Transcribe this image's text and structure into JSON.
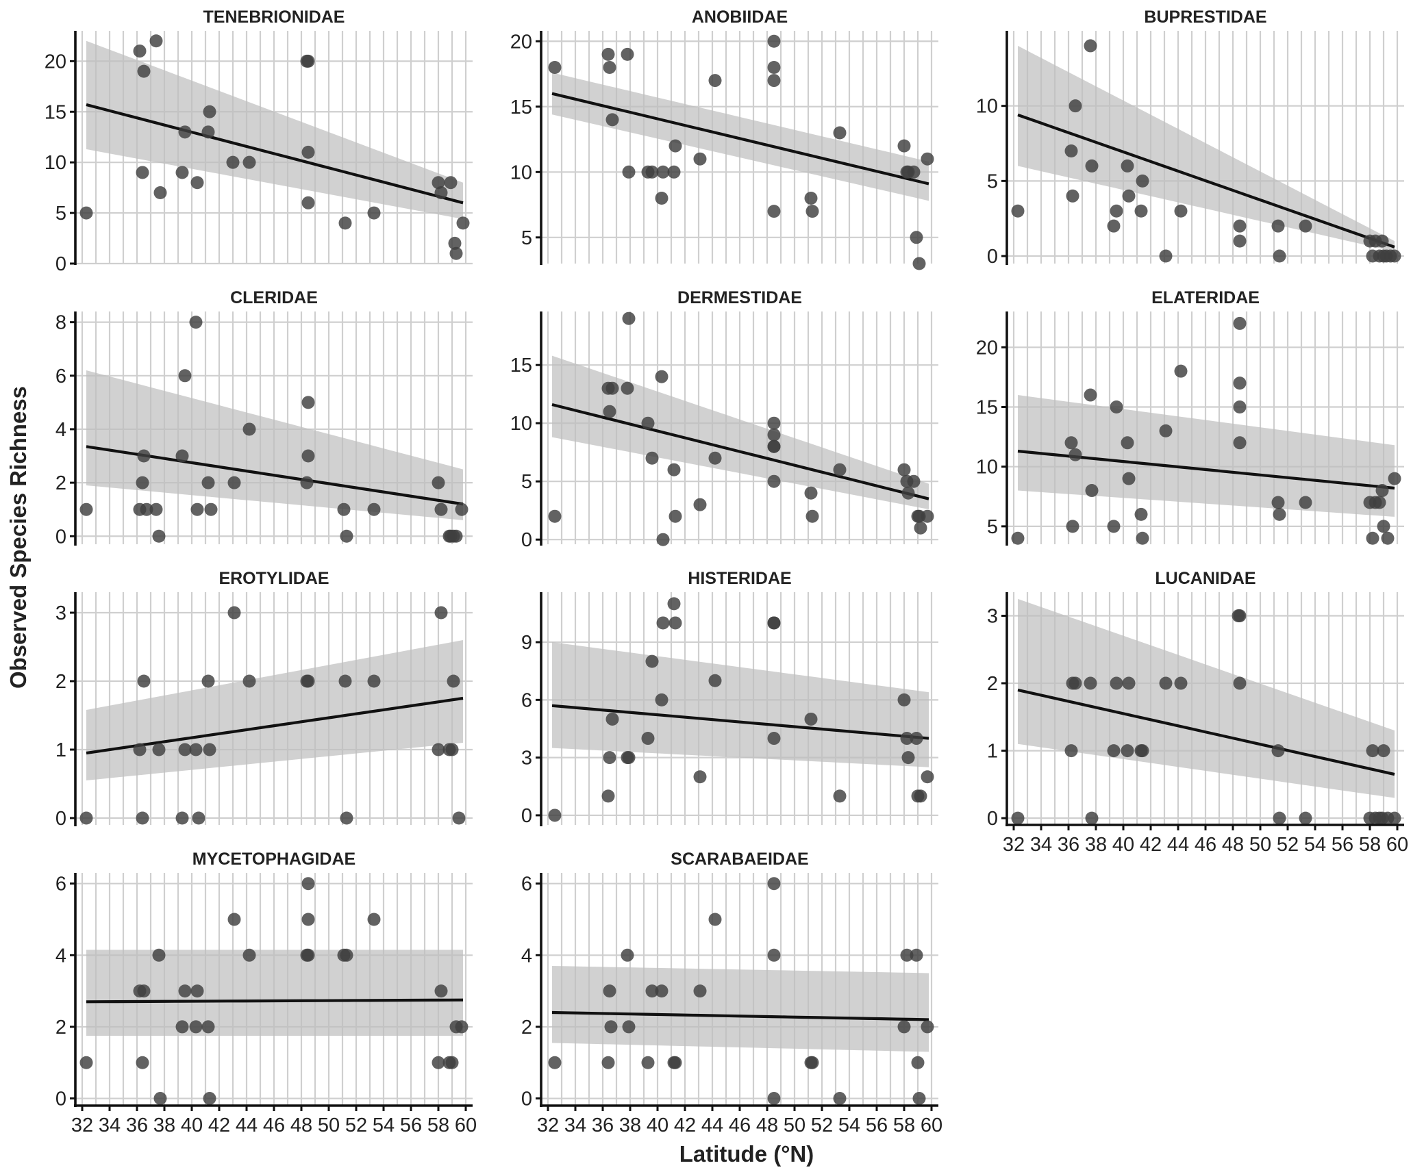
{
  "y_axis_label": "Observed Species Richness",
  "x_axis_label": "Latitude (°N)",
  "x_ticks": [
    "32",
    "34",
    "36",
    "38",
    "40",
    "42",
    "44",
    "46",
    "48",
    "50",
    "52",
    "54",
    "56",
    "58",
    "60"
  ],
  "chart_data": [
    {
      "type": "scatter",
      "title": "TENEBRIONIDAE",
      "ylim": [
        0,
        23
      ],
      "yticks": [
        0,
        5,
        10,
        15,
        20
      ],
      "x": [
        32.3,
        36.2,
        36.5,
        37.4,
        36.4,
        37.7,
        39.3,
        39.5,
        40.4,
        41.2,
        41.3,
        43.0,
        44.2,
        48.5,
        48.5,
        48.5,
        51.2,
        53.3,
        58.0,
        58.2,
        58.9,
        59.2,
        59.3,
        59.8,
        48.4
      ],
      "y": [
        5,
        21,
        19,
        22,
        9,
        7,
        9,
        13,
        8,
        13,
        15,
        10,
        10,
        20,
        11,
        6,
        4,
        5,
        8,
        7,
        8,
        2,
        1,
        4,
        20
      ],
      "fit": [
        15.7,
        6.0
      ],
      "band_low": [
        11.3,
        4.4
      ],
      "band_high": [
        22.0,
        8.0
      ]
    },
    {
      "type": "scatter",
      "title": "ANOBIIDAE",
      "ylim": [
        3,
        20.8
      ],
      "yticks": [
        5,
        10,
        15,
        20
      ],
      "x": [
        32.5,
        36.4,
        36.5,
        36.7,
        37.8,
        37.9,
        39.3,
        39.6,
        40.3,
        40.4,
        41.2,
        41.3,
        43.1,
        44.2,
        48.5,
        48.5,
        48.5,
        48.5,
        51.2,
        51.3,
        53.3,
        58.0,
        58.2,
        58.7,
        58.9,
        59.1,
        59.7,
        58.3
      ],
      "y": [
        18,
        19,
        18,
        14,
        19,
        10,
        10,
        10,
        8,
        10,
        10,
        12,
        11,
        17,
        20,
        18,
        17,
        7,
        8,
        7,
        13,
        12,
        10,
        10,
        5,
        3,
        11,
        10
      ],
      "fit": [
        16.0,
        9.1
      ],
      "band_low": [
        14.4,
        7.8
      ],
      "band_high": [
        17.6,
        10.8
      ]
    },
    {
      "type": "scatter",
      "title": "BUPRESTIDAE",
      "ylim": [
        -0.5,
        15
      ],
      "yticks": [
        0,
        5,
        10
      ],
      "x": [
        32.3,
        36.2,
        36.3,
        36.5,
        37.6,
        37.7,
        39.3,
        39.5,
        40.3,
        40.4,
        41.3,
        41.4,
        43.1,
        44.2,
        48.5,
        48.5,
        51.3,
        51.4,
        53.3,
        58.0,
        58.2,
        58.4,
        58.9,
        59.0,
        59.2,
        59.5,
        59.8,
        58.7
      ],
      "y": [
        3,
        7,
        4,
        10,
        14,
        6,
        2,
        3,
        6,
        4,
        3,
        5,
        0,
        3,
        2,
        1,
        2,
        0,
        2,
        1,
        0,
        1,
        1,
        0,
        0,
        0,
        0,
        0
      ],
      "fit": [
        9.4,
        0.6
      ],
      "band_low": [
        6.0,
        0.3
      ],
      "band_high": [
        14.0,
        1.0
      ]
    },
    {
      "type": "scatter",
      "title": "CLERIDAE",
      "ylim": [
        -0.3,
        8.4
      ],
      "yticks": [
        0,
        2,
        4,
        6,
        8
      ],
      "x": [
        32.3,
        36.2,
        36.4,
        36.5,
        36.7,
        37.4,
        37.6,
        39.3,
        39.5,
        40.3,
        40.4,
        41.2,
        41.4,
        43.1,
        44.2,
        48.5,
        48.5,
        48.4,
        51.1,
        51.3,
        53.3,
        58.0,
        58.2,
        58.8,
        59.1,
        59.3,
        59.7,
        58.9
      ],
      "y": [
        1,
        1,
        2,
        3,
        1,
        1,
        0,
        3,
        6,
        8,
        1,
        2,
        1,
        2,
        4,
        5,
        3,
        2,
        1,
        0,
        1,
        2,
        1,
        0,
        0,
        0,
        1,
        0
      ],
      "fit": [
        3.35,
        1.2
      ],
      "band_low": [
        1.9,
        0.6
      ],
      "band_high": [
        6.2,
        2.5
      ]
    },
    {
      "type": "scatter",
      "title": "DERMESTIDAE",
      "ylim": [
        -0.4,
        19.6
      ],
      "yticks": [
        0,
        5,
        10,
        15
      ],
      "x": [
        32.5,
        36.4,
        36.5,
        36.7,
        37.8,
        37.9,
        39.3,
        39.6,
        40.3,
        40.4,
        41.2,
        41.3,
        43.1,
        44.2,
        48.5,
        48.5,
        48.5,
        48.5,
        48.5,
        51.2,
        51.3,
        53.3,
        58.0,
        58.2,
        58.3,
        58.7,
        59.0,
        59.2,
        59.7,
        59.1
      ],
      "y": [
        2,
        13,
        11,
        13,
        13,
        19,
        10,
        7,
        14,
        0,
        6,
        2,
        3,
        7,
        10,
        9,
        8,
        8,
        5,
        4,
        2,
        6,
        6,
        5,
        4,
        5,
        2,
        1,
        2,
        2
      ],
      "fit": [
        11.6,
        3.5
      ],
      "band_low": [
        8.8,
        2.6
      ],
      "band_high": [
        15.8,
        4.8
      ]
    },
    {
      "type": "scatter",
      "title": "ELATERIDAE",
      "ylim": [
        3.5,
        23
      ],
      "yticks": [
        5,
        10,
        15,
        20
      ],
      "x": [
        32.3,
        36.2,
        36.3,
        36.5,
        37.6,
        37.7,
        39.3,
        39.5,
        40.3,
        40.4,
        41.3,
        41.4,
        43.1,
        44.2,
        48.5,
        48.5,
        48.5,
        48.5,
        51.3,
        51.4,
        53.3,
        58.0,
        58.2,
        58.4,
        58.9,
        59.0,
        59.3,
        59.8,
        58.7
      ],
      "y": [
        4,
        12,
        5,
        11,
        16,
        8,
        5,
        15,
        12,
        9,
        6,
        4,
        13,
        18,
        22,
        17,
        15,
        12,
        7,
        6,
        7,
        7,
        4,
        7,
        8,
        5,
        4,
        9,
        7
      ],
      "fit": [
        11.3,
        8.2
      ],
      "band_low": [
        8.0,
        5.8
      ],
      "band_high": [
        16.0,
        11.8
      ]
    },
    {
      "type": "scatter",
      "title": "EROTYLIDAE",
      "ylim": [
        -0.1,
        3.3
      ],
      "yticks": [
        0,
        1,
        2,
        3
      ],
      "x": [
        32.3,
        36.2,
        36.4,
        36.5,
        37.6,
        39.3,
        39.5,
        40.3,
        40.5,
        41.2,
        41.3,
        43.1,
        44.2,
        48.5,
        48.4,
        51.2,
        51.3,
        53.3,
        58.0,
        58.2,
        58.8,
        59.1,
        59.5,
        59.0
      ],
      "y": [
        0,
        1,
        0,
        2,
        1,
        0,
        1,
        1,
        0,
        2,
        1,
        3,
        2,
        2,
        2,
        2,
        0,
        2,
        1,
        3,
        1,
        2,
        0,
        1
      ],
      "fit": [
        0.95,
        1.75
      ],
      "band_low": [
        0.55,
        1.1
      ],
      "band_high": [
        1.58,
        2.6
      ]
    },
    {
      "type": "scatter",
      "title": "HISTERIDAE",
      "ylim": [
        -0.5,
        11.6
      ],
      "yticks": [
        0,
        3,
        6,
        9
      ],
      "x": [
        32.5,
        36.4,
        36.5,
        36.7,
        37.8,
        37.9,
        39.3,
        39.6,
        40.3,
        40.4,
        41.2,
        41.3,
        43.1,
        44.2,
        48.5,
        48.5,
        48.5,
        51.2,
        53.3,
        58.0,
        58.2,
        58.3,
        58.9,
        59.0,
        59.2,
        59.7
      ],
      "y": [
        0,
        1,
        3,
        5,
        3,
        3,
        4,
        8,
        6,
        10,
        11,
        10,
        2,
        7,
        10,
        10,
        4,
        5,
        1,
        6,
        4,
        3,
        4,
        1,
        1,
        2
      ],
      "fit": [
        5.7,
        4.0
      ],
      "band_low": [
        3.5,
        2.5
      ],
      "band_high": [
        9.0,
        6.4
      ]
    },
    {
      "type": "scatter",
      "title": "LUCANIDAE",
      "ylim": [
        -0.1,
        3.35
      ],
      "yticks": [
        0,
        1,
        2,
        3
      ],
      "x": [
        32.3,
        36.2,
        36.3,
        36.5,
        37.6,
        37.7,
        39.3,
        39.5,
        40.3,
        40.4,
        41.3,
        41.4,
        43.1,
        44.2,
        48.5,
        48.5,
        48.4,
        51.3,
        51.4,
        53.3,
        58.0,
        58.2,
        58.4,
        58.9,
        59.0,
        59.3,
        59.8,
        58.7
      ],
      "y": [
        0,
        1,
        2,
        2,
        2,
        0,
        1,
        2,
        1,
        2,
        1,
        1,
        2,
        2,
        3,
        2,
        3,
        1,
        0,
        0,
        0,
        1,
        0,
        0,
        1,
        0,
        0,
        0
      ],
      "fit": [
        1.9,
        0.65
      ],
      "band_low": [
        1.1,
        0.3
      ],
      "band_high": [
        3.25,
        1.3
      ]
    },
    {
      "type": "scatter",
      "title": "MYCETOPHAGIDAE",
      "ylim": [
        -0.2,
        6.3
      ],
      "yticks": [
        0,
        2,
        4,
        6
      ],
      "x": [
        32.3,
        36.2,
        36.4,
        36.5,
        37.6,
        37.7,
        39.3,
        39.5,
        40.3,
        40.4,
        41.2,
        41.3,
        43.1,
        44.2,
        48.5,
        48.5,
        48.5,
        48.4,
        51.1,
        51.3,
        53.3,
        58.0,
        58.2,
        58.8,
        59.0,
        59.3,
        59.7
      ],
      "y": [
        1,
        3,
        1,
        3,
        4,
        0,
        2,
        3,
        2,
        3,
        2,
        0,
        5,
        4,
        6,
        5,
        4,
        4,
        4,
        4,
        5,
        1,
        3,
        1,
        1,
        2,
        2
      ],
      "fit": [
        2.7,
        2.75
      ],
      "band_low": [
        1.75,
        1.75
      ],
      "band_high": [
        4.15,
        4.15
      ]
    },
    {
      "type": "scatter",
      "title": "SCARABAEIDAE",
      "ylim": [
        -0.2,
        6.3
      ],
      "yticks": [
        0,
        2,
        4,
        6
      ],
      "x": [
        32.5,
        36.4,
        36.5,
        36.6,
        37.8,
        37.9,
        39.3,
        39.6,
        40.3,
        41.2,
        41.3,
        43.1,
        44.2,
        48.5,
        48.5,
        48.5,
        51.2,
        51.3,
        53.3,
        58.0,
        58.2,
        58.9,
        59.0,
        59.1,
        59.7
      ],
      "y": [
        1,
        1,
        3,
        2,
        4,
        2,
        1,
        3,
        3,
        1,
        1,
        3,
        5,
        6,
        4,
        0,
        1,
        1,
        0,
        2,
        4,
        4,
        1,
        0,
        2
      ],
      "fit": [
        2.4,
        2.2
      ],
      "band_low": [
        1.55,
        1.3
      ],
      "band_high": [
        3.7,
        3.5
      ]
    }
  ]
}
